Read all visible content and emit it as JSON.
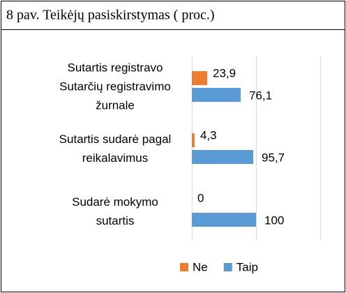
{
  "chart_data": {
    "type": "bar",
    "orientation": "horizontal",
    "title": "8 pav. Teikėjų pasiskirstymas ( proc.)",
    "categories": [
      "Sutartis registravo Sutarčių registravimo žurnale",
      "Sutartis sudarė pagal reikalavimus",
      "Sudarė mokymo sutartis"
    ],
    "series": [
      {
        "name": "Ne",
        "color": "#ed7d31",
        "values": [
          23.9,
          4.3,
          0
        ],
        "value_labels": [
          "23,9",
          "4,3",
          "0"
        ]
      },
      {
        "name": "Taip",
        "color": "#5b9bd5",
        "values": [
          76.1,
          95.7,
          100
        ],
        "value_labels": [
          "76,1",
          "95,7",
          "100"
        ]
      }
    ],
    "xlim": [
      0,
      200
    ],
    "xticks": [
      0,
      100,
      200
    ],
    "grid": true,
    "legend": "bottom"
  }
}
